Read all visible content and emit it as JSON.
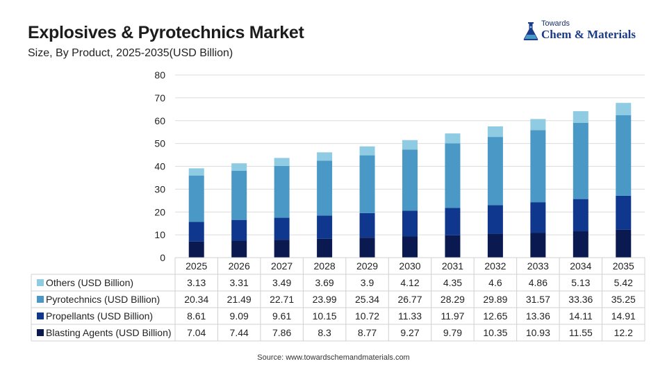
{
  "title": "Explosives & Pyrotechnics Market",
  "subtitle": "Size, By Product,  2025-2035(USD Billion)",
  "logo": {
    "small": "Towards",
    "big": "Chem & Materials"
  },
  "source": "Source: www.towardschemandmaterials.com",
  "colors": {
    "others": "#8fcbe3",
    "pyrotechnics": "#4a98c6",
    "propellants": "#10378e",
    "blasting": "#0a1a50"
  },
  "chart_data": {
    "type": "bar",
    "stacked": true,
    "categories": [
      "2025",
      "2026",
      "2027",
      "2028",
      "2029",
      "2030",
      "2031",
      "2032",
      "2033",
      "2034",
      "2035"
    ],
    "ylim": [
      0,
      80
    ],
    "yticks": [
      0,
      10,
      20,
      30,
      40,
      50,
      60,
      70,
      80
    ],
    "grid": true,
    "series": [
      {
        "name": "Others (USD Billion)",
        "key": "others",
        "values": [
          3.13,
          3.31,
          3.49,
          3.69,
          3.9,
          4.12,
          4.35,
          4.6,
          4.86,
          5.13,
          5.42
        ]
      },
      {
        "name": "Pyrotechnics (USD Billion)",
        "key": "pyrotechnics",
        "values": [
          20.34,
          21.49,
          22.71,
          23.99,
          25.34,
          26.77,
          28.29,
          29.89,
          31.57,
          33.36,
          35.25
        ]
      },
      {
        "name": "Propellants (USD Billion)",
        "key": "propellants",
        "values": [
          8.61,
          9.09,
          9.61,
          10.15,
          10.72,
          11.33,
          11.97,
          12.65,
          13.36,
          14.11,
          14.91
        ]
      },
      {
        "name": "Blasting Agents (USD Billion)",
        "key": "blasting",
        "values": [
          7.04,
          7.44,
          7.86,
          8.3,
          8.77,
          9.27,
          9.79,
          10.35,
          10.93,
          11.55,
          12.2
        ]
      }
    ],
    "stack_order": [
      "blasting",
      "propellants",
      "pyrotechnics",
      "others"
    ]
  }
}
